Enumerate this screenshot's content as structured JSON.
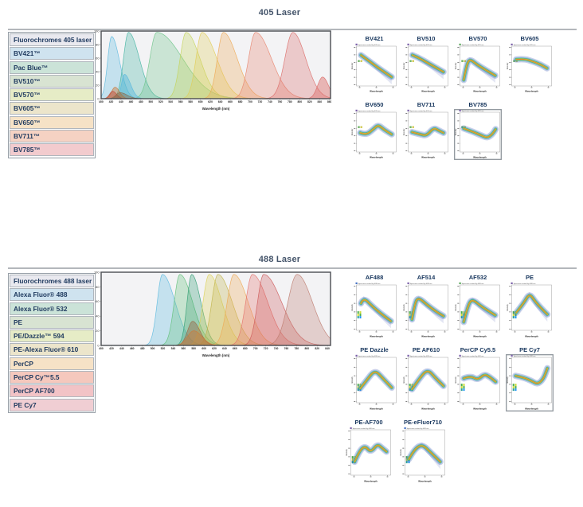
{
  "page": {
    "background": "#ffffff"
  },
  "palette": {
    "title_color": "#44546a",
    "divider": "#b3b7bb",
    "table_text": "#1f3a5f",
    "chart_bg": "#f3f3f5",
    "chart_border": "#4a4d52",
    "band_jet": [
      "#3a52b0",
      "#35a0cc",
      "#3fae5c",
      "#d3d43c",
      "#e87c28"
    ],
    "marker_squares": [
      "#69b05c",
      "#cfc84e"
    ],
    "marker_strip1": [
      "#4caf50",
      "#cddc39",
      "#2aa198"
    ],
    "marker_strip2": [
      "#cddc39",
      "#4caf50",
      "#2196f3"
    ]
  },
  "panel_common": {
    "xlabel": "Wavelength",
    "ylabel": "Intensity"
  },
  "sections": [
    {
      "title": "405 Laser",
      "panel_subtitle": "Spectrum excited by 405 nm",
      "table": {
        "header": "Fluorochromes 405 laser",
        "header_bg": "#e9e9ef",
        "rows": [
          {
            "label": "BV421™",
            "bg": "#cfe3ef"
          },
          {
            "label": "Pac Blue™",
            "bg": "#cbe3d8"
          },
          {
            "label": "BV510™",
            "bg": "#d8e3d2"
          },
          {
            "label": "BV570™",
            "bg": "#e6ecc6"
          },
          {
            "label": "BV605™",
            "bg": "#ece5cb"
          },
          {
            "label": "BV650™",
            "bg": "#f6e2c6"
          },
          {
            "label": "BV711™",
            "bg": "#f5d2c3"
          },
          {
            "label": "BV785™",
            "bg": "#f2cbce"
          }
        ]
      },
      "panel_rows": [
        [
          {
            "label": "BV421",
            "marker": "#7a5fa8",
            "fan": true,
            "profile": [
              [
                0.08,
                0.2
              ],
              [
                0.3,
                0.36
              ],
              [
                0.55,
                0.55
              ],
              [
                0.92,
                0.8
              ]
            ]
          },
          {
            "label": "BV510",
            "marker": "#7a5fa8",
            "fan": true,
            "profile": [
              [
                0.07,
                0.2
              ],
              [
                0.22,
                0.26
              ],
              [
                0.5,
                0.42
              ],
              [
                0.92,
                0.66
              ]
            ]
          },
          {
            "label": "BV570",
            "marker": "#58a85a",
            "fan": true,
            "profile": [
              [
                0.06,
                0.88
              ],
              [
                0.13,
                0.5
              ],
              [
                0.22,
                0.3
              ],
              [
                0.42,
                0.46
              ],
              [
                0.68,
                0.62
              ],
              [
                0.92,
                0.76
              ]
            ]
          },
          {
            "label": "BV605",
            "marker": "#7a5fa8",
            "fan": false,
            "profile": [
              [
                0.08,
                0.32
              ],
              [
                0.3,
                0.3
              ],
              [
                0.55,
                0.38
              ],
              [
                0.75,
                0.46
              ],
              [
                0.92,
                0.56
              ]
            ]
          }
        ],
        [
          {
            "label": "BV650",
            "marker": "#7a5fa8",
            "fan": false,
            "profile": [
              [
                0.06,
                0.52
              ],
              [
                0.22,
                0.58
              ],
              [
                0.42,
                0.42
              ],
              [
                0.55,
                0.3
              ],
              [
                0.72,
                0.44
              ],
              [
                0.92,
                0.56
              ]
            ]
          },
          {
            "label": "BV711",
            "marker": "#7a5fa8",
            "fan": false,
            "profile": [
              [
                0.06,
                0.5
              ],
              [
                0.28,
                0.56
              ],
              [
                0.46,
                0.6
              ],
              [
                0.65,
                0.38
              ],
              [
                0.8,
                0.46
              ],
              [
                0.92,
                0.52
              ]
            ]
          },
          {
            "label": "BV785",
            "marker": "#7a5fa8",
            "fan": false,
            "emphasis": true,
            "profile": [
              [
                0.06,
                0.4
              ],
              [
                0.28,
                0.48
              ],
              [
                0.52,
                0.58
              ],
              [
                0.7,
                0.66
              ],
              [
                0.84,
                0.56
              ],
              [
                0.93,
                0.42
              ]
            ]
          }
        ]
      ]
    },
    {
      "title": "488 Laser",
      "panel_subtitle": "Spectrum excited by 488 nm",
      "table": {
        "header": "Fluorochromes 488 laser",
        "header_bg": "#e9e9ef",
        "rows": [
          {
            "label": "Alexa Fluor® 488",
            "bg": "#cfe3ef"
          },
          {
            "label": "Alexa Fluor® 532",
            "bg": "#cbe3d8"
          },
          {
            "label": "PE",
            "bg": "#d8e3d2"
          },
          {
            "label": "PE/Dazzle™ 594",
            "bg": "#e6ecc6"
          },
          {
            "label": "PE-Alexa Fluor® 610",
            "bg": "#ece5cb"
          },
          {
            "label": "PerCP",
            "bg": "#f6e2c6"
          },
          {
            "label": "PerCP Cy™5.5",
            "bg": "#f5c8bd"
          },
          {
            "label": "PerCP AF700",
            "bg": "#f2c3c6"
          },
          {
            "label": "PE Cy7",
            "bg": "#f0ced3"
          }
        ]
      },
      "panel_rows": [
        [
          {
            "label": "AF488",
            "marker": "#4472c4",
            "fan": true,
            "profile": [
              [
                0.08,
                0.4
              ],
              [
                0.15,
                0.26
              ],
              [
                0.38,
                0.46
              ],
              [
                0.62,
                0.64
              ],
              [
                0.9,
                0.82
              ]
            ]
          },
          {
            "label": "AF514",
            "marker": "#7a5fa8",
            "fan": true,
            "profile": [
              [
                0.06,
                0.78
              ],
              [
                0.14,
                0.38
              ],
              [
                0.24,
                0.26
              ],
              [
                0.48,
                0.44
              ],
              [
                0.73,
                0.6
              ],
              [
                0.92,
                0.7
              ]
            ]
          },
          {
            "label": "AF532",
            "marker": "#58a85a",
            "fan": true,
            "profile": [
              [
                0.06,
                0.84
              ],
              [
                0.18,
                0.42
              ],
              [
                0.3,
                0.3
              ],
              [
                0.55,
                0.48
              ],
              [
                0.92,
                0.68
              ]
            ]
          },
          {
            "label": "PE",
            "marker": "#7a5fa8",
            "fan": true,
            "profile": [
              [
                0.08,
                0.62
              ],
              [
                0.28,
                0.4
              ],
              [
                0.44,
                0.16
              ],
              [
                0.6,
                0.36
              ],
              [
                0.8,
                0.55
              ],
              [
                0.93,
                0.66
              ]
            ]
          }
        ],
        [
          {
            "label": "PE Dazzle",
            "marker": "#7a5fa8",
            "fan": false,
            "profile": [
              [
                0.06,
                0.7
              ],
              [
                0.24,
                0.5
              ],
              [
                0.46,
                0.26
              ],
              [
                0.68,
                0.46
              ],
              [
                0.92,
                0.68
              ]
            ]
          },
          {
            "label": "PE AF610",
            "marker": "#7a5fa8",
            "fan": false,
            "profile": [
              [
                0.06,
                0.72
              ],
              [
                0.25,
                0.48
              ],
              [
                0.48,
                0.24
              ],
              [
                0.7,
                0.45
              ],
              [
                0.92,
                0.64
              ]
            ]
          },
          {
            "label": "PerCP Cy5.5",
            "marker": "#7a5fa8",
            "fan": false,
            "profile": [
              [
                0.06,
                0.46
              ],
              [
                0.24,
                0.4
              ],
              [
                0.44,
                0.5
              ],
              [
                0.62,
                0.36
              ],
              [
                0.76,
                0.42
              ],
              [
                0.93,
                0.54
              ]
            ]
          },
          {
            "label": "PE Cy7",
            "marker": "#7a5fa8",
            "fan": false,
            "emphasis": true,
            "profile": [
              [
                0.06,
                0.4
              ],
              [
                0.28,
                0.44
              ],
              [
                0.5,
                0.52
              ],
              [
                0.66,
                0.6
              ],
              [
                0.82,
                0.48
              ],
              [
                0.93,
                0.22
              ]
            ]
          }
        ],
        [
          {
            "label": "PE-AF700",
            "marker": "#7a5fa8",
            "fan": false,
            "profile": [
              [
                0.06,
                0.72
              ],
              [
                0.18,
                0.48
              ],
              [
                0.34,
                0.34
              ],
              [
                0.5,
                0.5
              ],
              [
                0.68,
                0.3
              ],
              [
                0.82,
                0.4
              ],
              [
                0.93,
                0.48
              ]
            ]
          },
          {
            "label": "PE-eFluor710",
            "marker": "#4472c4",
            "fan": true,
            "profile": [
              [
                0.06,
                0.66
              ],
              [
                0.2,
                0.44
              ],
              [
                0.42,
                0.3
              ],
              [
                0.66,
                0.5
              ],
              [
                0.92,
                0.72
              ]
            ]
          }
        ]
      ]
    }
  ],
  "chart_data": [
    {
      "type": "area",
      "title": "405 Laser",
      "xlabel": "Wavelength (nm)",
      "ylabel": "",
      "xlim": [
        400,
        862
      ],
      "ylim": [
        0,
        100
      ],
      "x_ticks": [
        400,
        420,
        440,
        460,
        480,
        500,
        520,
        540,
        560,
        580,
        600,
        620,
        640,
        660,
        680,
        700,
        720,
        740,
        760,
        780,
        800,
        820,
        840,
        860
      ],
      "y_ticks": [
        0,
        20,
        40,
        60,
        80,
        100
      ],
      "grid": false,
      "legend": "none",
      "series": [
        {
          "name": "BV421",
          "peak": 421,
          "amp": 92,
          "rise": 8,
          "tail": 16,
          "color": "#58b8de"
        },
        {
          "name": "Pac Blue",
          "peak": 455,
          "amp": 98,
          "rise": 10,
          "tail": 22,
          "color": "#3fb3a0"
        },
        {
          "name": "BV510",
          "peak": 512,
          "amp": 98,
          "rise": 14,
          "tail": 52,
          "color": "#6cc488"
        },
        {
          "name": "BV570",
          "peak": 571,
          "amp": 98,
          "rise": 12,
          "tail": 28,
          "color": "#c3d455"
        },
        {
          "name": "BV605",
          "peak": 603,
          "amp": 98,
          "rise": 12,
          "tail": 30,
          "color": "#e2cd55"
        },
        {
          "name": "BV650",
          "peak": 646,
          "amp": 98,
          "rise": 12,
          "tail": 28,
          "color": "#efa852"
        },
        {
          "name": "BV711",
          "peak": 711,
          "amp": 98,
          "rise": 14,
          "tail": 32,
          "color": "#e8826b"
        },
        {
          "name": "BV785",
          "peak": 786,
          "amp": 98,
          "rise": 16,
          "tail": 26,
          "color": "#dc6a66"
        }
      ],
      "minor_series": [
        {
          "name": "BV421 shoulder",
          "peak": 447,
          "amp": 36,
          "rise": 6,
          "tail": 12,
          "color": "#58b8de"
        },
        {
          "name": "BV785 bump",
          "peak": 846,
          "amp": 32,
          "rise": 10,
          "tail": 12,
          "color": "#dc6a66"
        },
        {
          "name": "ex bump 1",
          "peak": 428,
          "amp": 17,
          "rise": 7,
          "tail": 9,
          "color": "#cc7a3a"
        },
        {
          "name": "ex bump 2",
          "peak": 423,
          "amp": 11,
          "rise": 6,
          "tail": 8,
          "color": "#c14a38"
        },
        {
          "name": "ex bump 3",
          "peak": 438,
          "amp": 9,
          "rise": 8,
          "tail": 14,
          "color": "#8a6a4a"
        }
      ]
    },
    {
      "type": "area",
      "title": "488 Laser",
      "xlabel": "Wavelength (nm)",
      "ylabel": "",
      "xlim": [
        400,
        846
      ],
      "ylim": [
        0,
        100
      ],
      "x_ticks": [
        400,
        420,
        440,
        460,
        480,
        500,
        520,
        540,
        560,
        580,
        600,
        620,
        640,
        660,
        680,
        700,
        720,
        740,
        760,
        780,
        800,
        820,
        840
      ],
      "y_ticks": [
        0,
        20,
        40,
        60,
        80,
        100
      ],
      "grid": false,
      "legend": "none",
      "series": [
        {
          "name": "Alexa Fluor 488",
          "peak": 519,
          "amp": 97,
          "rise": 10,
          "tail": 25,
          "color": "#58b8de"
        },
        {
          "name": "Alexa Fluor 532",
          "peak": 553,
          "amp": 97,
          "rise": 11,
          "tail": 25,
          "color": "#5fbf77"
        },
        {
          "name": "PE",
          "peak": 576,
          "amp": 97,
          "rise": 9,
          "tail": 18,
          "color": "#2f9d72"
        },
        {
          "name": "PE/Dazzle 594",
          "peak": 610,
          "amp": 97,
          "rise": 12,
          "tail": 25,
          "color": "#ddd253"
        },
        {
          "name": "PE-Alexa Fluor 610",
          "peak": 627,
          "amp": 97,
          "rise": 12,
          "tail": 28,
          "color": "#c0b44a"
        },
        {
          "name": "PerCP",
          "peak": 658,
          "amp": 97,
          "rise": 13,
          "tail": 28,
          "color": "#efa852"
        },
        {
          "name": "PerCP Cy5.5",
          "peak": 694,
          "amp": 97,
          "rise": 13,
          "tail": 30,
          "color": "#e4706a"
        },
        {
          "name": "PerCP AF700",
          "peak": 716,
          "amp": 97,
          "rise": 12,
          "tail": 35,
          "color": "#cc5858"
        },
        {
          "name": "PE Cy7",
          "peak": 781,
          "amp": 97,
          "rise": 18,
          "tail": 30,
          "color": "#bd7a6d"
        }
      ],
      "minor_series": [
        {
          "name": "small bump 1",
          "peak": 578,
          "amp": 33,
          "rise": 10,
          "tail": 14,
          "color": "#9a6a4a"
        },
        {
          "name": "small bump 2",
          "peak": 580,
          "amp": 20,
          "rise": 12,
          "tail": 16,
          "color": "#cc7a3a"
        }
      ]
    }
  ]
}
